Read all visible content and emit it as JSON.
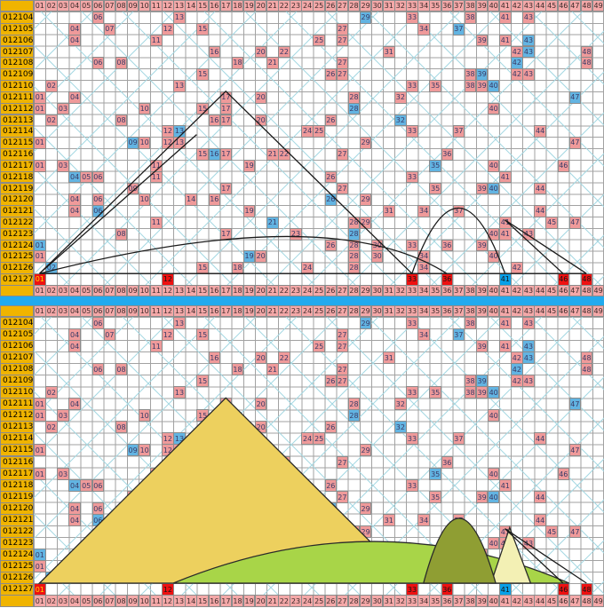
{
  "column_headers": [
    "01",
    "02",
    "03",
    "04",
    "05",
    "06",
    "07",
    "08",
    "09",
    "10",
    "11",
    "12",
    "13",
    "14",
    "15",
    "16",
    "17",
    "18",
    "19",
    "20",
    "21",
    "22",
    "23",
    "24",
    "25",
    "26",
    "27",
    "28",
    "29",
    "30",
    "31",
    "32",
    "33",
    "34",
    "35",
    "36",
    "37",
    "38",
    "39",
    "40",
    "41",
    "42",
    "43",
    "44",
    "45",
    "46",
    "47",
    "48",
    "49"
  ],
  "chart_data": {
    "type": "table",
    "description": "Lottery number trend chart, numbers 01-49; two stacked panels show the same 24 draws. Each draw has 6 numbers (pink) plus 1 special number (blue). Latest draw 012127 highlighted bright red with blue special. Top panel has black trend lines; bottom panel has filled mountain shapes.",
    "panels": 2,
    "rows": [
      {
        "period": "012104",
        "numbers": [
          6,
          13,
          29,
          33,
          38,
          41,
          43
        ],
        "special": 29
      },
      {
        "period": "012105",
        "numbers": [
          4,
          7,
          12,
          15,
          27,
          34,
          37
        ],
        "special": 37
      },
      {
        "period": "012106",
        "numbers": [
          4,
          11,
          25,
          27,
          39,
          41,
          43
        ],
        "special": 43
      },
      {
        "period": "012107",
        "numbers": [
          16,
          20,
          22,
          31,
          42,
          43,
          48
        ],
        "special": 43
      },
      {
        "period": "012108",
        "numbers": [
          6,
          8,
          18,
          21,
          27,
          42,
          48
        ],
        "special": 42
      },
      {
        "period": "012109",
        "numbers": [
          15,
          26,
          27,
          38,
          39,
          42,
          43
        ],
        "special": 39
      },
      {
        "period": "012110",
        "numbers": [
          2,
          13,
          33,
          35,
          38,
          39,
          40
        ],
        "special": 40
      },
      {
        "period": "012111",
        "numbers": [
          1,
          4,
          17,
          20,
          28,
          32,
          47
        ],
        "special": 47
      },
      {
        "period": "012112",
        "numbers": [
          1,
          3,
          10,
          15,
          17,
          28,
          40
        ],
        "special": 28
      },
      {
        "period": "012113",
        "numbers": [
          2,
          8,
          16,
          17,
          20,
          26,
          32
        ],
        "special": 32
      },
      {
        "period": "012114",
        "numbers": [
          12,
          13,
          24,
          25,
          33,
          37,
          44
        ],
        "special": 13
      },
      {
        "period": "012115",
        "numbers": [
          1,
          9,
          10,
          12,
          13,
          29,
          47
        ],
        "special": 9
      },
      {
        "period": "012116",
        "numbers": [
          15,
          16,
          17,
          21,
          22,
          27,
          36
        ],
        "special": 16
      },
      {
        "period": "012117",
        "numbers": [
          1,
          3,
          11,
          19,
          35,
          40,
          46
        ],
        "special": 35
      },
      {
        "period": "012118",
        "numbers": [
          4,
          5,
          6,
          11,
          26,
          33,
          41
        ],
        "special": 4
      },
      {
        "period": "012119",
        "numbers": [
          9,
          17,
          27,
          35,
          39,
          40,
          44
        ],
        "special": 40
      },
      {
        "period": "012120",
        "numbers": [
          4,
          6,
          10,
          14,
          16,
          26,
          29
        ],
        "special": 26
      },
      {
        "period": "012121",
        "numbers": [
          4,
          6,
          19,
          31,
          34,
          37,
          44
        ],
        "special": 6
      },
      {
        "period": "012122",
        "numbers": [
          11,
          21,
          28,
          29,
          41,
          45,
          47
        ],
        "special": 21
      },
      {
        "period": "012123",
        "numbers": [
          8,
          17,
          23,
          28,
          40,
          41,
          43
        ],
        "special": 28
      },
      {
        "period": "012124",
        "numbers": [
          1,
          26,
          28,
          30,
          33,
          36,
          39
        ],
        "special": 1
      },
      {
        "period": "012125",
        "numbers": [
          1,
          19,
          20,
          28,
          30,
          34,
          40
        ],
        "special": 19
      },
      {
        "period": "012126",
        "numbers": [
          2,
          15,
          18,
          24,
          28,
          34,
          42
        ],
        "special": 2
      },
      {
        "period": "012127",
        "numbers": [
          1,
          12,
          33,
          36,
          41,
          46,
          48
        ],
        "special": 41,
        "latest": true
      }
    ],
    "latest": {
      "period": "012127",
      "red_numbers": [
        1,
        12,
        33,
        36,
        46,
        48
      ],
      "special": 41
    }
  },
  "colors": {
    "label_bg": "#f0b400",
    "header_bg": "#f4a8a8",
    "header_text": "#3d2b2b",
    "ball_bg": "#ef9a9a",
    "special_bg": "#62b4e2",
    "cell_text": "#393a66",
    "latest_red": "#ee1111",
    "latest_blue": "#09a0e8",
    "latest_text": "#151515",
    "latest_01_text": "#ffd800",
    "separator": "#22aaee",
    "grid_line": "#a2a2a2",
    "diagonal": "#a5d8e2",
    "trend_line": "#1a1a1a",
    "shape_stroke": "#2a2a2a",
    "mountain_yellow": "#edd05e",
    "mountain_pale_left": "#eef0a6",
    "mountain_green": "#a8d548",
    "mountain_olive": "#8f9e33",
    "mountain_pale_right": "#f3f0b4"
  },
  "overlays": {
    "top_lines": [
      {
        "type": "polyline",
        "pts": [
          [
            1,
            23
          ],
          [
            17,
            7
          ],
          [
            33,
            23
          ]
        ]
      },
      {
        "type": "polyline",
        "pts": [
          [
            1,
            23
          ],
          [
            14.5,
            10.8
          ]
        ]
      },
      {
        "type": "polyline",
        "pts": [
          [
            1,
            23
          ],
          [
            48,
            23
          ]
        ]
      },
      {
        "type": "quad",
        "p0": [
          1,
          23
        ],
        "c": [
          26,
          16.5
        ],
        "p1": [
          36,
          23
        ]
      },
      {
        "type": "quad",
        "p0": [
          33,
          23
        ],
        "c": [
          37,
          11.5
        ],
        "p1": [
          41,
          23
        ]
      },
      {
        "type": "polyline",
        "pts": [
          [
            41,
            18.3
          ],
          [
            46,
            23
          ]
        ]
      },
      {
        "type": "polyline",
        "pts": [
          [
            41,
            18.3
          ],
          [
            48,
            23
          ]
        ]
      }
    ],
    "bottom_shapes": [
      {
        "type": "poly",
        "fill": "mountain_pale_left",
        "pts": [
          [
            1,
            23
          ],
          [
            6.3,
            17.8
          ],
          [
            7.8,
            23
          ]
        ]
      },
      {
        "type": "poly",
        "fill": "mountain_yellow",
        "pts": [
          [
            1,
            23
          ],
          [
            17,
            7
          ],
          [
            33,
            23
          ]
        ]
      },
      {
        "type": "quadfill",
        "fill": "mountain_green",
        "p0": [
          12.5,
          23
        ],
        "c": [
          30,
          15.8
        ],
        "p1": [
          46.5,
          23
        ]
      },
      {
        "type": "poly",
        "fill": "mountain_pale_right",
        "pts": [
          [
            39.8,
            23
          ],
          [
            41.4,
            18.2
          ],
          [
            43.2,
            23
          ]
        ]
      },
      {
        "type": "quadfill",
        "fill": "mountain_olive",
        "p0": [
          34,
          23
        ],
        "c": [
          37,
          11.8
        ],
        "p1": [
          40.2,
          23
        ]
      },
      {
        "type": "polyline",
        "pts": [
          [
            41,
            18.3
          ],
          [
            46,
            23
          ]
        ]
      },
      {
        "type": "polyline",
        "pts": [
          [
            41,
            18.3
          ],
          [
            48,
            23
          ]
        ]
      }
    ]
  }
}
